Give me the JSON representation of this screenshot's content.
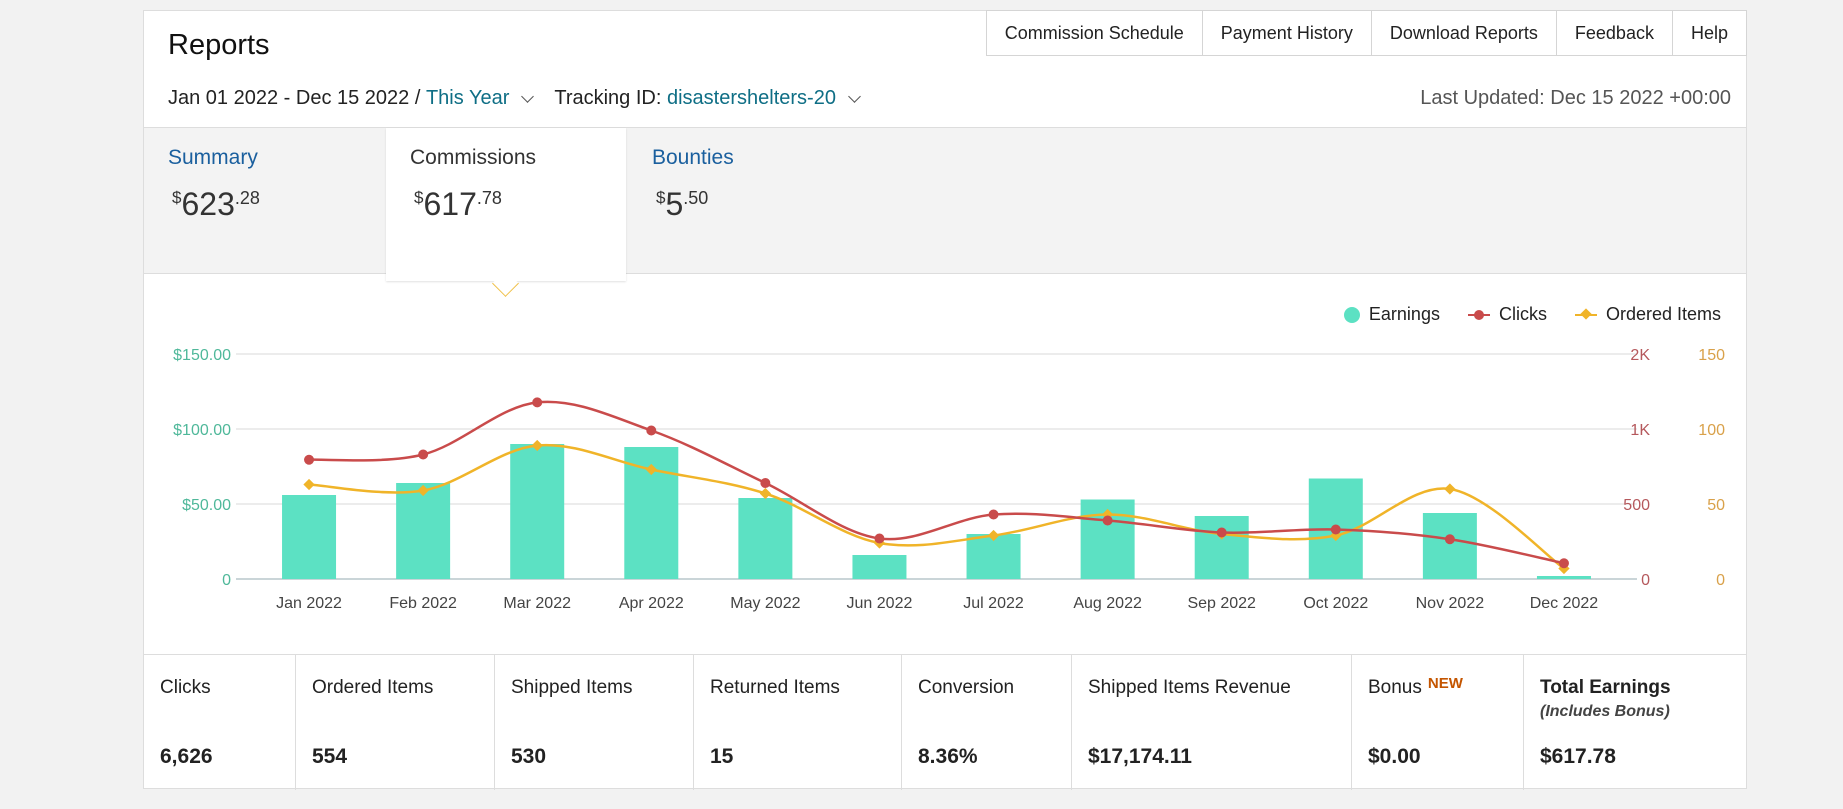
{
  "header": {
    "title": "Reports",
    "nav": [
      "Commission Schedule",
      "Payment History",
      "Download Reports",
      "Feedback",
      "Help"
    ]
  },
  "filters": {
    "date_range": "Jan 01 2022 - Dec 15 2022 /",
    "period": "This Year",
    "tracking_label": "Tracking ID:",
    "tracking_id": "disastershelters-20",
    "last_updated": "Last Updated: Dec 15 2022 +00:00"
  },
  "tabs": [
    {
      "label": "Summary",
      "currency": "$",
      "whole": "623",
      "cents": ".28"
    },
    {
      "label": "Commissions",
      "currency": "$",
      "whole": "617",
      "cents": ".78",
      "active": true
    },
    {
      "label": "Bounties",
      "currency": "$",
      "whole": "5",
      "cents": ".50"
    }
  ],
  "legend": [
    "Earnings",
    "Clicks",
    "Ordered Items"
  ],
  "chart_data": {
    "type": "bar",
    "categories": [
      "Jan 2022",
      "Feb 2022",
      "Mar 2022",
      "Apr 2022",
      "May 2022",
      "Jun 2022",
      "Jul 2022",
      "Aug 2022",
      "Sep 2022",
      "Oct 2022",
      "Nov 2022",
      "Dec 2022"
    ],
    "series": [
      {
        "name": "Earnings",
        "type": "bar",
        "axis": "left",
        "color": "#5ce1c3",
        "values": [
          56,
          64,
          90,
          88,
          54,
          16,
          30,
          53,
          42,
          67,
          44,
          2
        ]
      },
      {
        "name": "Clicks",
        "type": "line",
        "axis": "right",
        "color": "#c94b4b",
        "values": [
          795,
          830,
          1355,
          990,
          640,
          270,
          430,
          390,
          310,
          330,
          265,
          105
        ]
      },
      {
        "name": "Ordered Items",
        "type": "line",
        "axis": "right2",
        "color": "#f0b429",
        "values": [
          63,
          59,
          89,
          73,
          57,
          24,
          29,
          43,
          30,
          29,
          60,
          7
        ]
      }
    ],
    "y_left": {
      "ticks": [
        "0",
        "$50.00",
        "$100.00",
        "$150.00"
      ],
      "range": [
        0,
        150
      ]
    },
    "y_right": {
      "ticks": [
        "0",
        "500",
        "1K",
        "2K"
      ]
    },
    "y_right2": {
      "ticks": [
        "0",
        "50",
        "100",
        "150"
      ],
      "range": [
        0,
        150
      ]
    },
    "grid": true,
    "legend_position": "top-right"
  },
  "colors": {
    "earnings": "#5ce1c3",
    "clicks": "#c94b4b",
    "ordered": "#f0b429",
    "link": "#0e6e85"
  },
  "metrics": [
    {
      "label": "Clicks",
      "value": "6,626"
    },
    {
      "label": "Ordered Items",
      "value": "554"
    },
    {
      "label": "Shipped Items",
      "value": "530"
    },
    {
      "label": "Returned Items",
      "value": "15"
    },
    {
      "label": "Conversion",
      "value": "8.36%"
    },
    {
      "label": "Shipped Items Revenue",
      "value": "$17,174.11"
    },
    {
      "label": "Bonus",
      "badge": "NEW",
      "value": "$0.00"
    },
    {
      "label": "Total Earnings",
      "sublabel": "(Includes Bonus)",
      "value": "$617.78"
    }
  ]
}
